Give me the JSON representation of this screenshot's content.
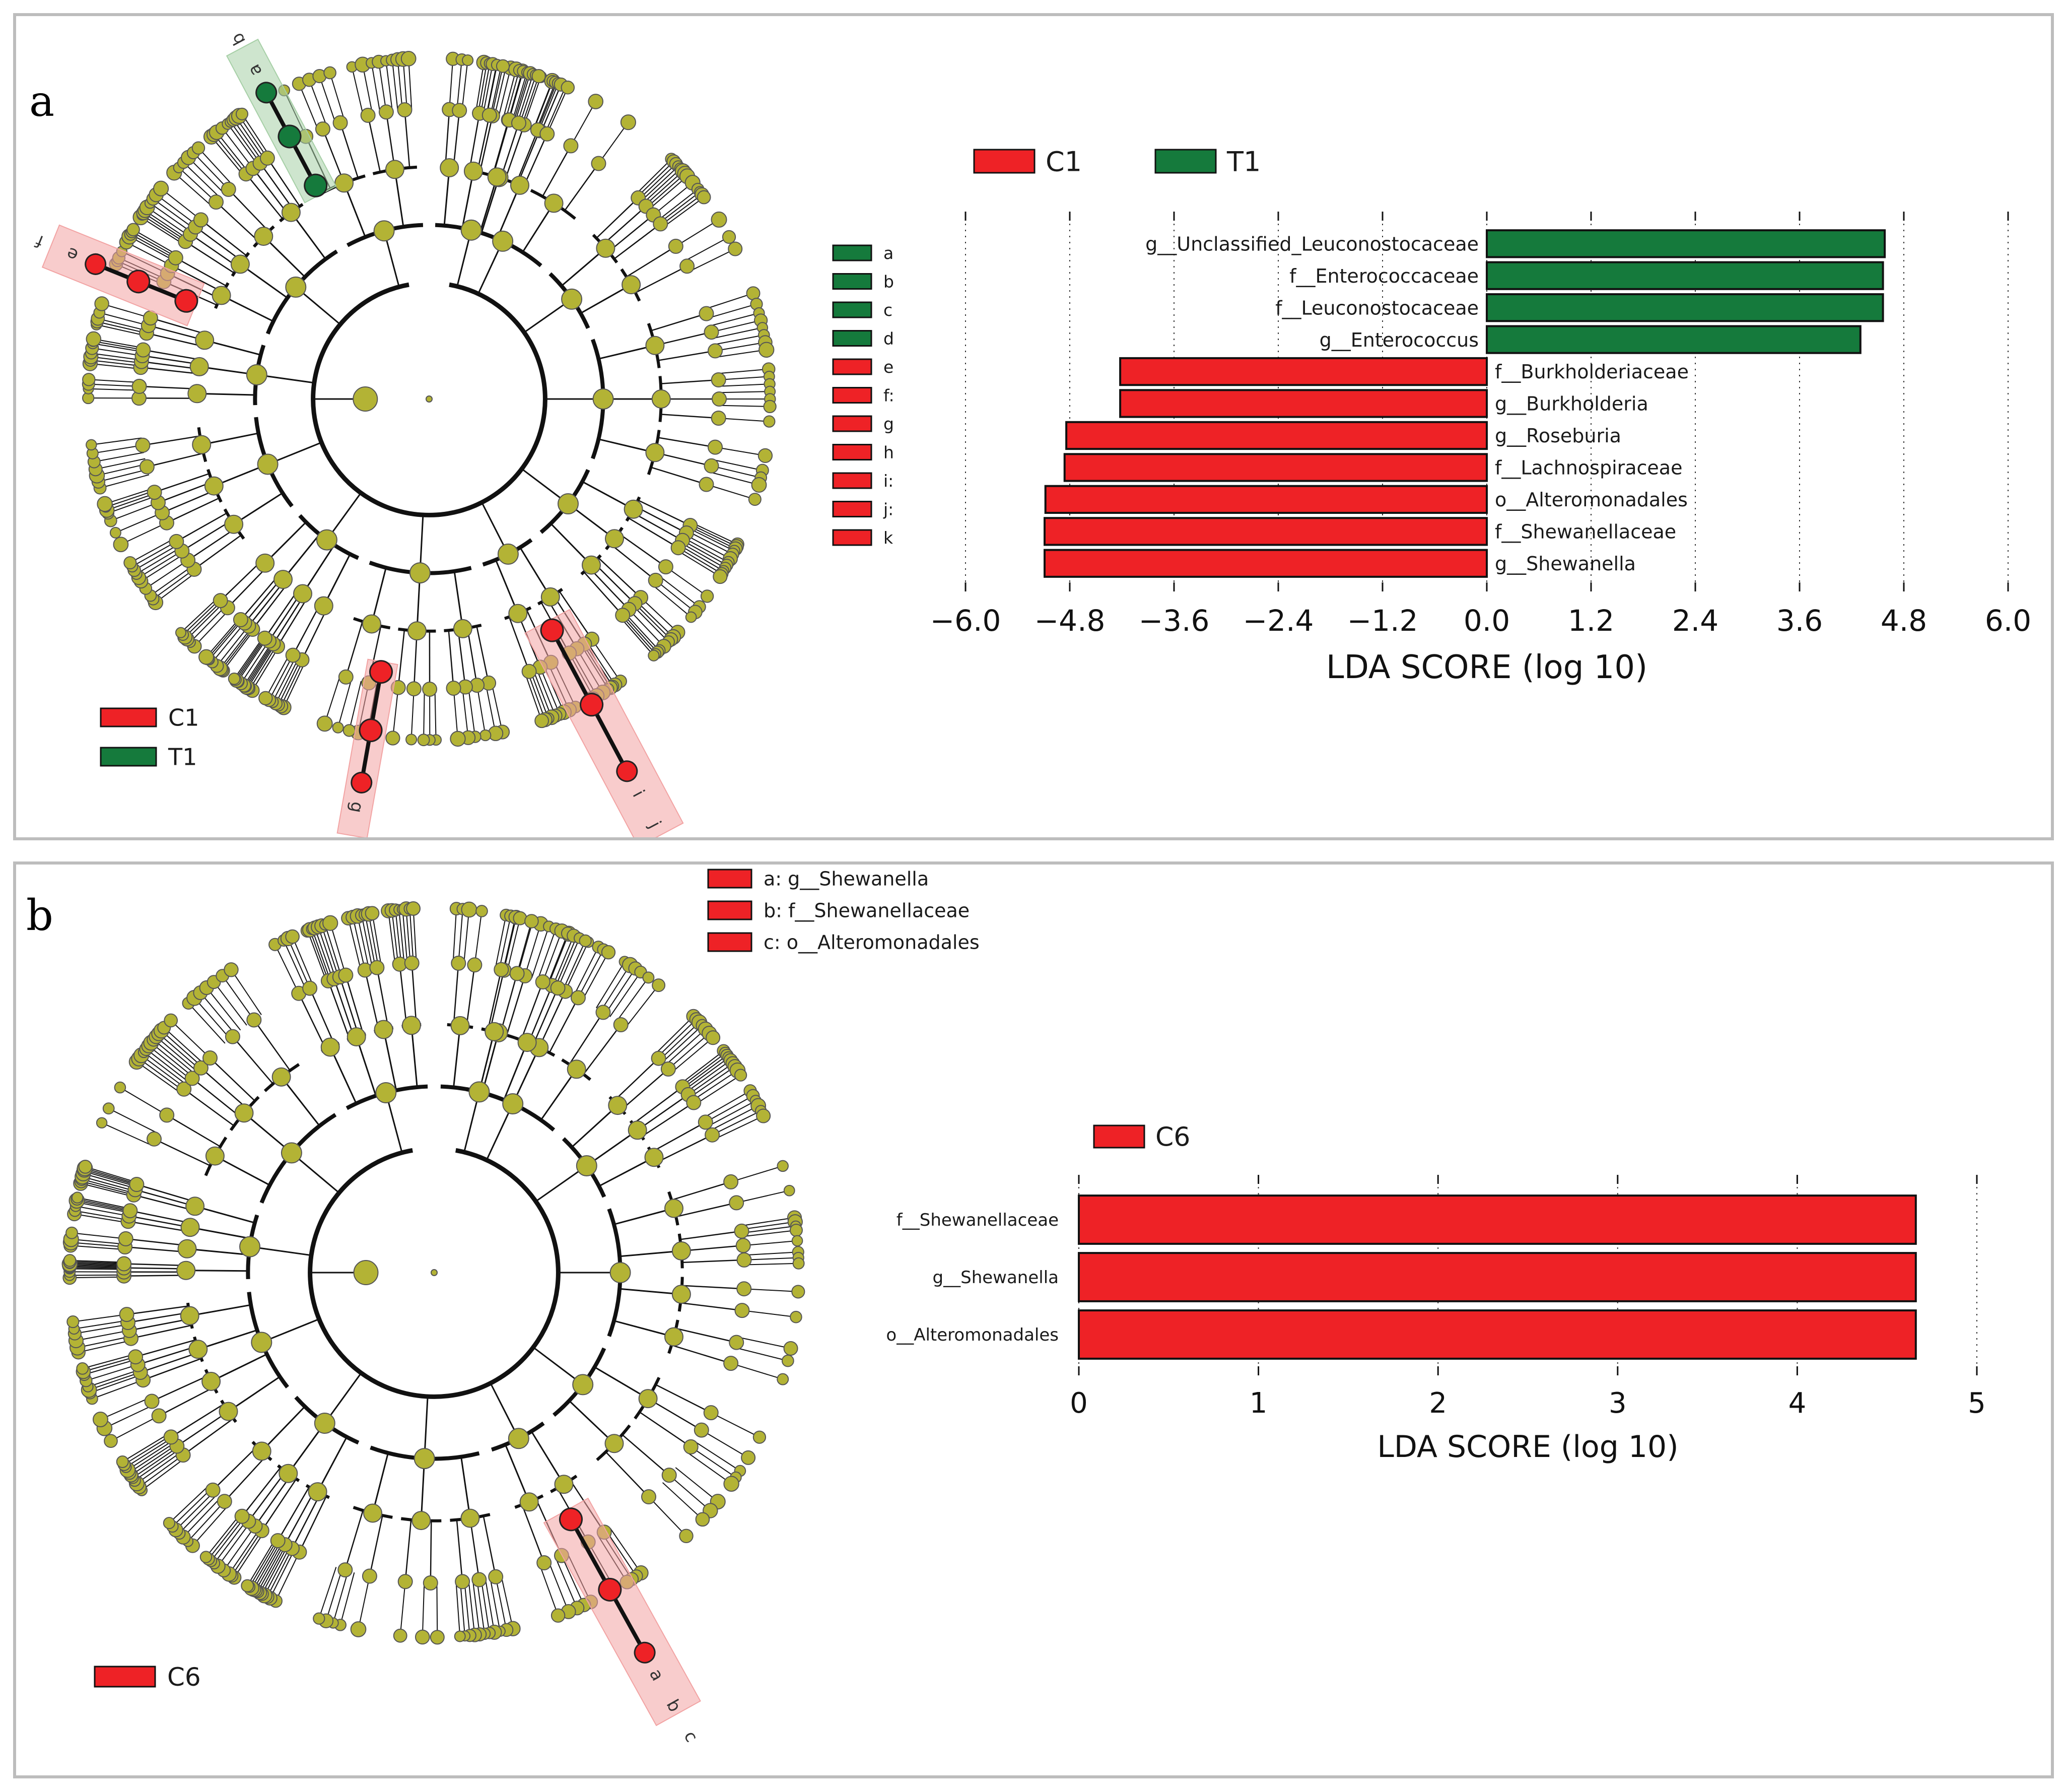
{
  "colors": {
    "c1": "#ee2226",
    "t1": "#157a3c",
    "node": "#b3b335",
    "c1_highlight": "#f2a3a3",
    "t1_highlight": "#a6cfa6"
  },
  "panel_a": {
    "letter": "a",
    "clado_legend": [
      {
        "key": "c1",
        "label": "C1"
      },
      {
        "key": "t1",
        "label": "T1"
      }
    ],
    "key_legend": [
      {
        "key": "t1",
        "label": "a"
      },
      {
        "key": "t1",
        "label": "b"
      },
      {
        "key": "t1",
        "label": "c"
      },
      {
        "key": "t1",
        "label": "d"
      },
      {
        "key": "c1",
        "label": "e"
      },
      {
        "key": "c1",
        "label": "f:"
      },
      {
        "key": "c1",
        "label": "g"
      },
      {
        "key": "c1",
        "label": "h"
      },
      {
        "key": "c1",
        "label": "i:"
      },
      {
        "key": "c1",
        "label": "j:"
      },
      {
        "key": "c1",
        "label": "k"
      }
    ],
    "clade_labels": {
      "t1": [
        "a",
        "b",
        "c",
        "d"
      ],
      "c1_upper": [
        "e",
        "f"
      ],
      "c1_lower": [
        "g",
        "h"
      ],
      "c1_right": [
        "i",
        "j",
        "k"
      ]
    }
  },
  "panel_b": {
    "letter": "b",
    "clado_legend": [
      {
        "key": "c1",
        "label": "C6"
      }
    ],
    "key_legend": [
      {
        "key": "c1",
        "label": "a: g__Shewanella"
      },
      {
        "key": "c1",
        "label": "b: f__Shewanellaceae"
      },
      {
        "key": "c1",
        "label": "c: o__Alteromonadales"
      }
    ],
    "clade_labels": {
      "c1": [
        "a",
        "b",
        "c"
      ]
    }
  },
  "chart_data": [
    {
      "type": "bar",
      "orientation": "horizontal",
      "title": "",
      "xlabel": "LDA SCORE (log 10)",
      "ylabel": "",
      "xlim": [
        -6.0,
        6.0
      ],
      "xticks": [
        -6.0,
        -4.8,
        -3.6,
        -2.4,
        -1.2,
        0.0,
        1.2,
        2.4,
        3.6,
        4.8,
        6.0
      ],
      "xtick_labels": [
        "−6.0",
        "−4.8",
        "−3.6",
        "−2.4",
        "−1.2",
        "0.0",
        "1.2",
        "2.4",
        "3.6",
        "4.8",
        "6.0"
      ],
      "grid": true,
      "legend": [
        {
          "name": "C1",
          "key": "c1"
        },
        {
          "name": "T1",
          "key": "t1"
        }
      ],
      "legend_position": "top-left",
      "bars": [
        {
          "label": "g__Unclassified_Leuconostocaceae",
          "value": 4.58,
          "group": "T1"
        },
        {
          "label": "f__Enterococcaceae",
          "value": 4.56,
          "group": "T1"
        },
        {
          "label": "f__Leuconostocaceae",
          "value": 4.56,
          "group": "T1"
        },
        {
          "label": "g__Enterococcus",
          "value": 4.3,
          "group": "T1"
        },
        {
          "label": "f__Burkholderiaceae",
          "value": -4.22,
          "group": "C1"
        },
        {
          "label": "g__Burkholderia",
          "value": -4.22,
          "group": "C1"
        },
        {
          "label": "g__Roseburia",
          "value": -4.84,
          "group": "C1"
        },
        {
          "label": "f__Lachnospiraceae",
          "value": -4.86,
          "group": "C1"
        },
        {
          "label": "o__Alteromonadales",
          "value": -5.08,
          "group": "C1"
        },
        {
          "label": "f__Shewanellaceae",
          "value": -5.09,
          "group": "C1"
        },
        {
          "label": "g__Shewanella",
          "value": -5.09,
          "group": "C1"
        }
      ]
    },
    {
      "type": "bar",
      "orientation": "horizontal",
      "title": "",
      "xlabel": "LDA SCORE (log 10)",
      "ylabel": "",
      "xlim": [
        0,
        5
      ],
      "xticks": [
        0,
        1,
        2,
        3,
        4,
        5
      ],
      "xtick_labels": [
        "0",
        "1",
        "2",
        "3",
        "4",
        "5"
      ],
      "grid": true,
      "legend": [
        {
          "name": "C6",
          "key": "c1"
        }
      ],
      "legend_position": "top-left",
      "bars": [
        {
          "label": "f__Shewanellaceae",
          "value": 4.66,
          "group": "C6"
        },
        {
          "label": "g__Shewanella",
          "value": 4.66,
          "group": "C6"
        },
        {
          "label": "o__Alteromonadales",
          "value": 4.66,
          "group": "C6"
        }
      ]
    }
  ]
}
